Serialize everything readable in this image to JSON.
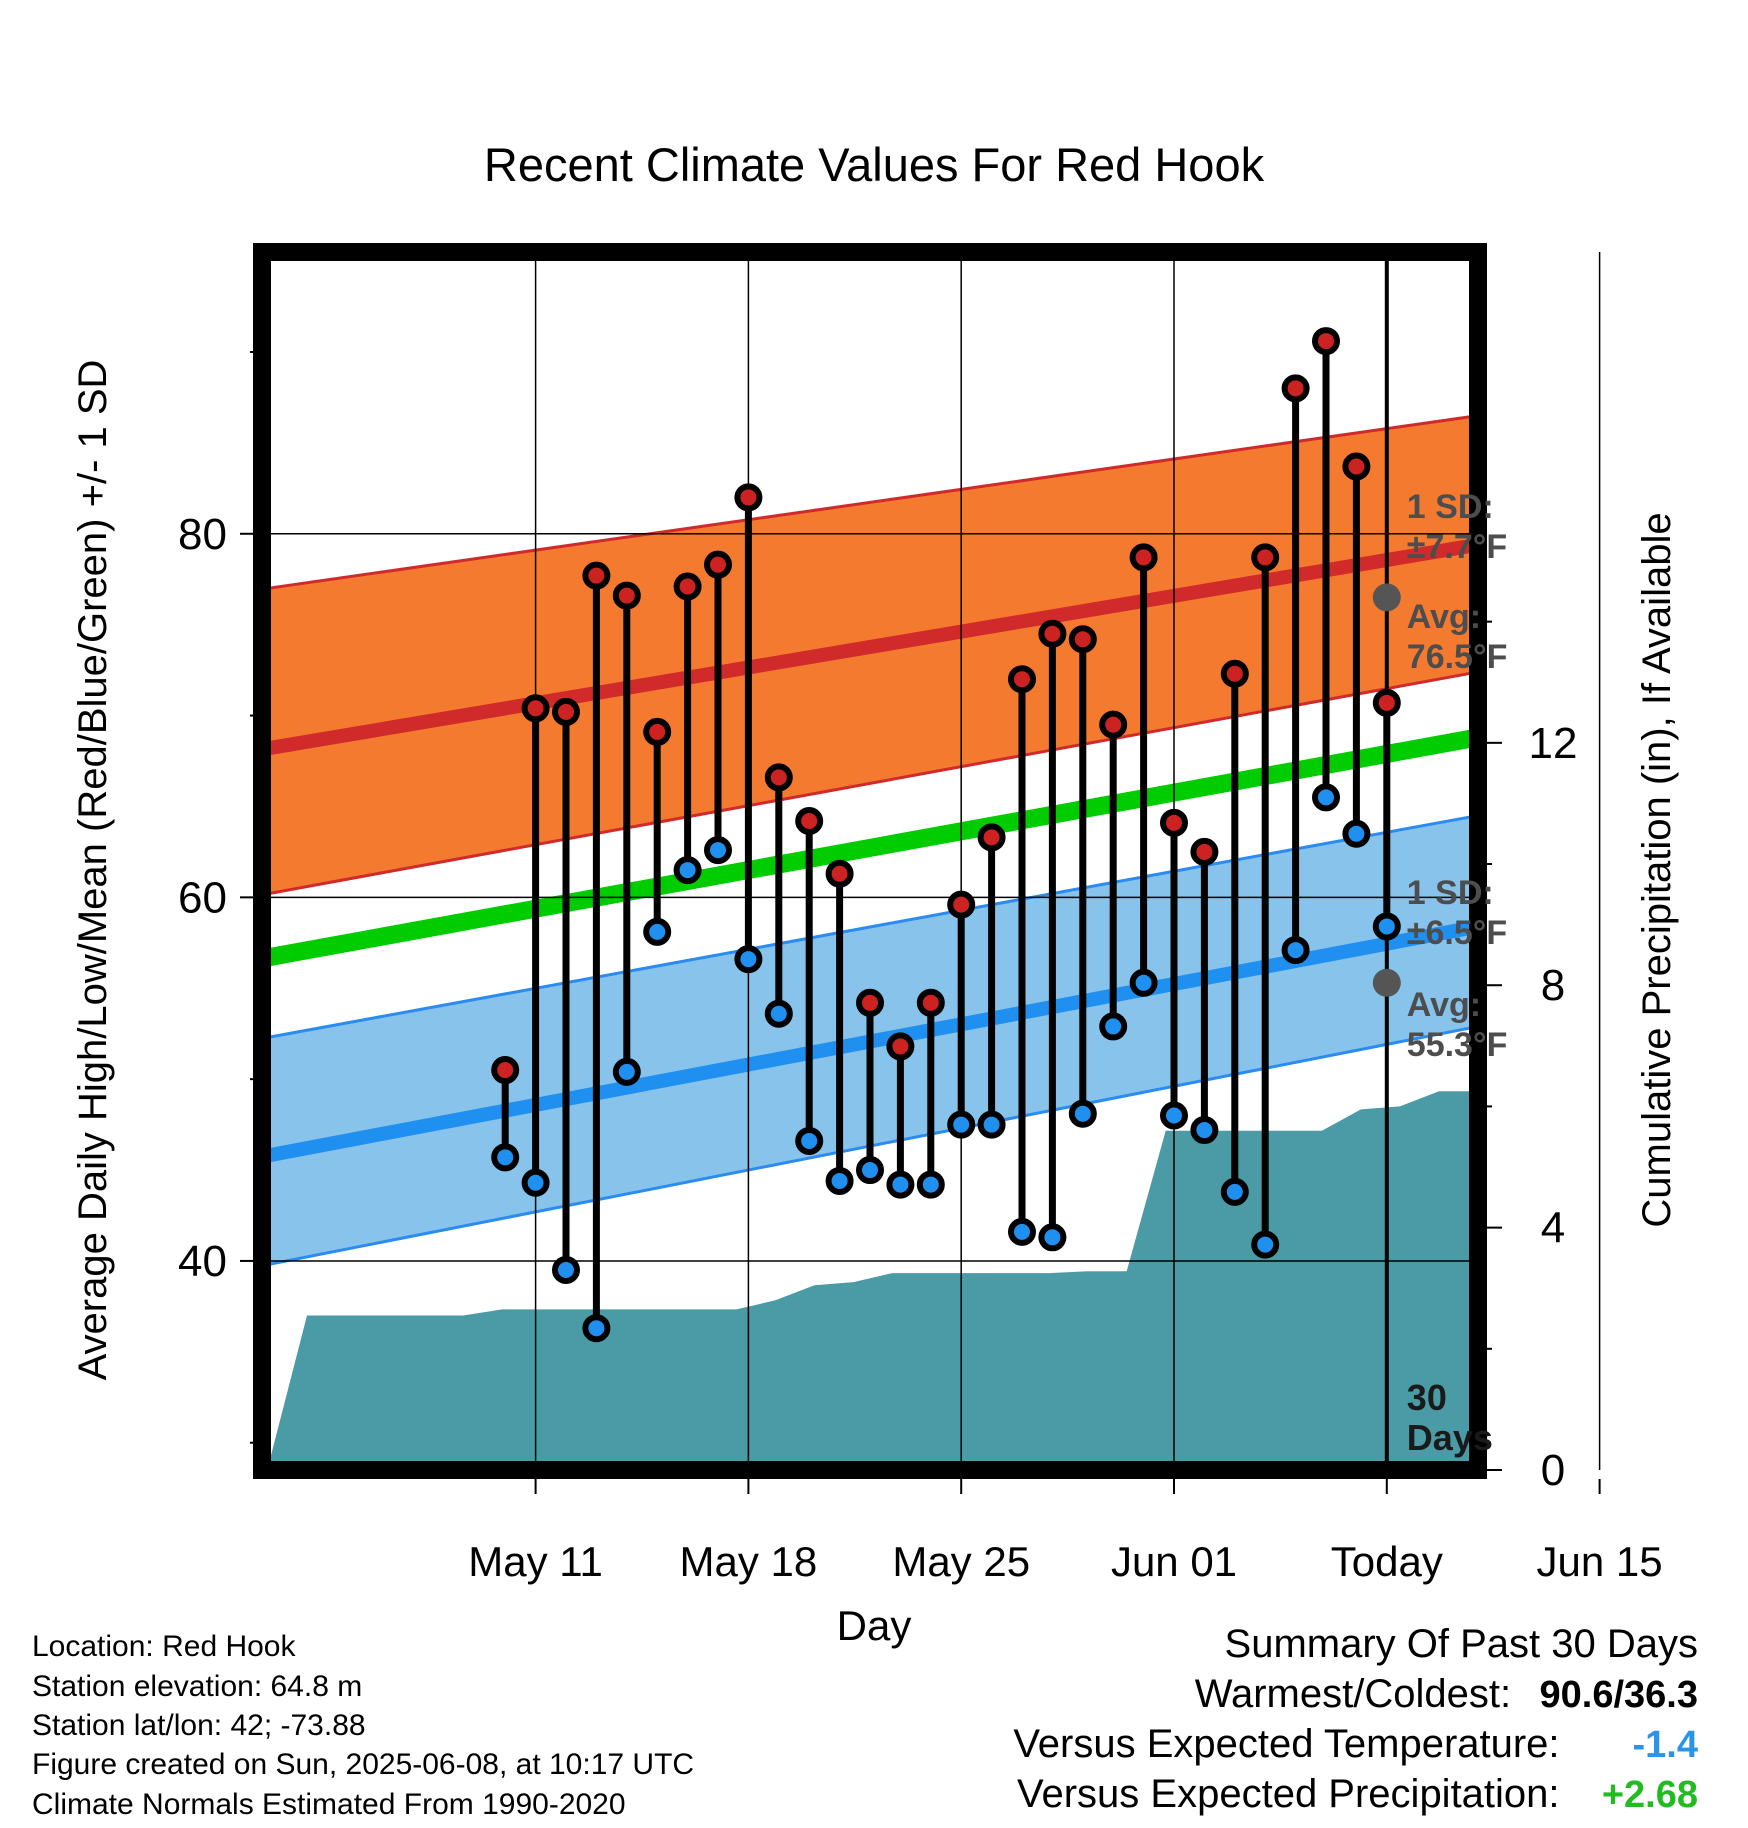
{
  "chart_data": {
    "type": "line",
    "title": "Recent Climate Values For Red Hook",
    "xlabel": "Day",
    "ylabel_left": "Average Daily High/Low/Mean (Red/Blue/Green) +/- 1 SD",
    "ylabel_right": "Cumulative Precipitation (in), If Available",
    "x_tick_labels": [
      "May 11",
      "May 18",
      "May 25",
      "Jun 01",
      "Today",
      "Jun 15"
    ],
    "y_left_ticks": [
      "40",
      "60",
      "80"
    ],
    "y_right_ticks": [
      "0",
      "4",
      "8",
      "12"
    ],
    "days": [
      "May 10",
      "May 11",
      "May 12",
      "May 13",
      "May 14",
      "May 15",
      "May 16",
      "May 17",
      "May 18",
      "May 19",
      "May 20",
      "May 21",
      "May 22",
      "May 23",
      "May 24",
      "May 25",
      "May 26",
      "May 27",
      "May 28",
      "May 29",
      "May 30",
      "May 31",
      "Jun 01",
      "Jun 02",
      "Jun 03",
      "Jun 04",
      "Jun 05",
      "Jun 06",
      "Jun 07",
      "Jun 08"
    ],
    "series": [
      {
        "name": "High",
        "color": "#cc2222",
        "values": [
          50.5,
          70.4,
          70.2,
          77.7,
          76.6,
          69.1,
          77.1,
          78.3,
          82.0,
          66.6,
          64.2,
          61.3,
          54.2,
          51.8,
          54.2,
          59.6,
          63.3,
          72.0,
          74.5,
          74.2,
          69.5,
          78.7,
          64.1,
          62.5,
          72.3,
          78.7,
          88.0,
          90.6,
          83.7,
          70.7
        ]
      },
      {
        "name": "Low",
        "color": "#2090f0",
        "values": [
          45.7,
          44.3,
          39.5,
          36.3,
          50.4,
          58.1,
          61.5,
          62.6,
          56.6,
          53.6,
          46.6,
          44.4,
          45.0,
          44.2,
          44.2,
          47.5,
          47.5,
          41.6,
          41.3,
          48.1,
          52.9,
          55.3,
          48.0,
          47.2,
          43.8,
          40.9,
          57.1,
          65.5,
          63.5,
          58.4
        ]
      }
    ],
    "normals": {
      "high_avg": [
        68.2,
        79.4
      ],
      "high_band": [
        [
          60.2,
          77.0
        ],
        [
          72.4,
          86.5
        ]
      ],
      "mean": [
        56.7,
        68.8
      ],
      "low_avg": [
        45.8,
        58.4
      ],
      "low_band": [
        [
          39.8,
          52.3
        ],
        [
          52.9,
          64.5
        ]
      ]
    },
    "precip_cumulative": [
      0.05,
      2.55,
      2.55,
      2.55,
      2.55,
      2.55,
      2.65,
      2.65,
      2.65,
      2.65,
      2.65,
      2.65,
      2.65,
      2.8,
      3.05,
      3.1,
      3.25,
      3.25,
      3.25,
      3.25,
      3.25,
      3.28,
      3.28,
      5.6,
      5.6,
      5.6,
      5.6,
      5.6,
      5.95,
      6.0,
      6.25,
      6.25
    ],
    "xlim": [
      "May 08",
      "Jun 17"
    ],
    "ylim_left": [
      28.5,
      95.5
    ],
    "ylim_right": [
      0,
      20.1
    ],
    "annotations": {
      "high_sd": {
        "line1": "1 SD:",
        "line2": "±7.7°F"
      },
      "high_avg": {
        "line1": "Avg:",
        "line2": "76.5°F"
      },
      "low_sd": {
        "line1": "1 SD:",
        "line2": "±6.5°F"
      },
      "low_avg": {
        "line1": "Avg:",
        "line2": "55.3°F"
      },
      "days": {
        "line1": "30",
        "line2": "Days"
      }
    },
    "today_high_avg": 76.5,
    "today_low_avg": 55.3,
    "colors": {
      "high_band": "#f47a30",
      "low_band": "#87c3ea",
      "mean": "#00cc00",
      "precip": "#4a9ba6",
      "frame": "#000000"
    }
  },
  "footer": {
    "location": "Location: Red Hook",
    "elevation": "Station elevation: 64.8 m",
    "latlon": "Station lat/lon: 42; -73.88",
    "created": "Figure created on Sun, 2025-06-08, at 10:17 UTC",
    "normals": "Climate Normals Estimated From 1990-2020"
  },
  "summary": {
    "title": "Summary Of Past 30 Days",
    "warm_cold_label": "Warmest/Coldest:",
    "warm_cold_value": "90.6/36.3",
    "temp_label": "Versus Expected Temperature:",
    "temp_value": "-1.4",
    "temp_color": "#2a95e8",
    "precip_label": "Versus Expected Precipitation:",
    "precip_value": "+2.68",
    "precip_color": "#22bb22"
  }
}
